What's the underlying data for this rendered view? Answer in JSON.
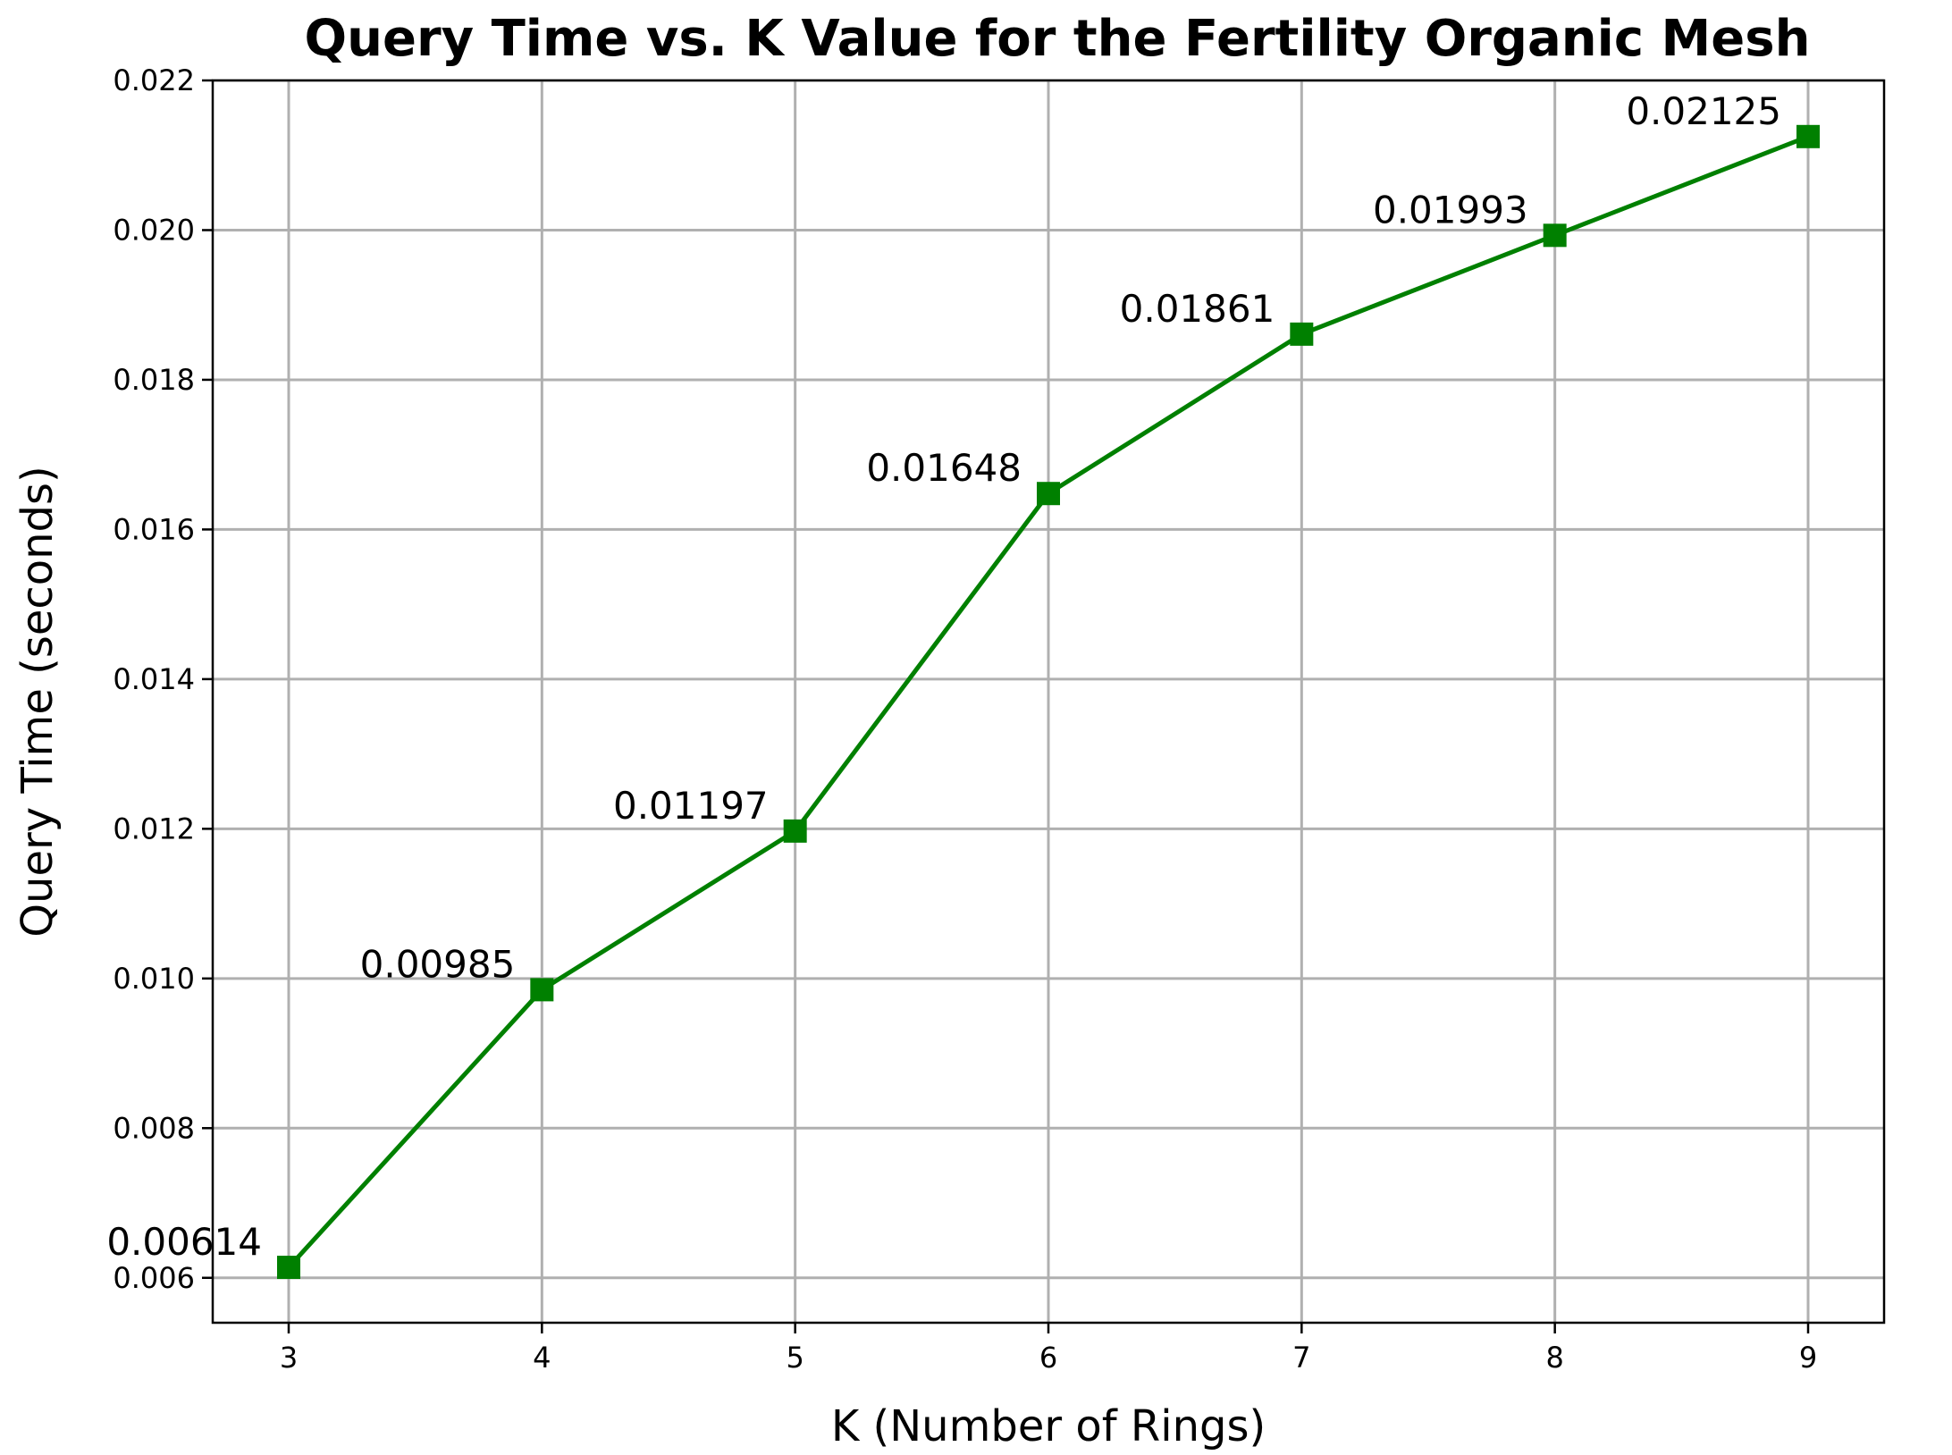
{
  "chart_data": {
    "type": "line",
    "title": "Query Time vs. K Value for the Fertility Organic Mesh",
    "xlabel": "K (Number of Rings)",
    "ylabel": "Query Time (seconds)",
    "x": [
      3,
      4,
      5,
      6,
      7,
      8,
      9
    ],
    "x_tick_labels": [
      "3",
      "4",
      "5",
      "6",
      "7",
      "8",
      "9"
    ],
    "xlim": [
      2.7,
      9.3
    ],
    "y_ticks": [
      0.006,
      0.008,
      0.01,
      0.012,
      0.014,
      0.016,
      0.018,
      0.02,
      0.022
    ],
    "y_tick_labels": [
      "0.006",
      "0.008",
      "0.010",
      "0.012",
      "0.014",
      "0.016",
      "0.018",
      "0.020",
      "0.022"
    ],
    "ylim": [
      0.0054,
      0.022
    ],
    "grid": true,
    "series": [
      {
        "values": [
          0.00614,
          0.00985,
          0.01197,
          0.01648,
          0.01861,
          0.01993,
          0.02125
        ],
        "data_labels": [
          "0.00614",
          "0.00985",
          "0.01197",
          "0.01648",
          "0.01861",
          "0.01993",
          "0.02125"
        ],
        "color": "#008000",
        "marker": "square"
      }
    ]
  }
}
